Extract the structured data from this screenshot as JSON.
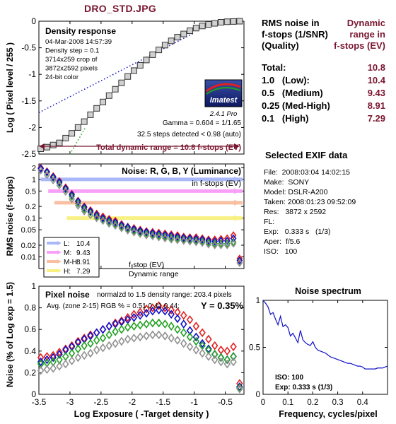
{
  "file_title": "DRO_STD.JPG",
  "summary": {
    "header_left": [
      "RMS noise in",
      "f-stops (1/SNR)",
      "(Quality)"
    ],
    "header_right": [
      "Dynamic",
      "range in",
      "f-stops (EV)"
    ],
    "rows": [
      {
        "label": "Total:",
        "value": "10.8"
      },
      {
        "label": "1.0   (Low):",
        "value": "10.4"
      },
      {
        "label": "0.5   (Medium)",
        "value": "9.43"
      },
      {
        "label": "0.25 (Med-High)",
        "value": "8.91"
      },
      {
        "label": "0.1   (High)",
        "value": "7.29"
      }
    ]
  },
  "exif": {
    "title": "Selected EXIF data",
    "rows": [
      "File:  2008:03:04 14:02:15",
      "Make:  SONY",
      "Model: DSLR-A200",
      "Taken: 2008:01:23 09:52:09",
      "Res:   3872 x 2592",
      "FL:",
      "Exp:   0.333 s   (1/3)",
      "Aper:  f/5.6",
      "ISO:   100"
    ]
  },
  "imatest": {
    "logo": "Imatest",
    "version": "2.4.1  Pro"
  },
  "colors": {
    "red": "#e02020",
    "green": "#20a020",
    "blue": "#1010c8",
    "gray": "#909090",
    "accent": "#7a1630",
    "curve": "#888888",
    "spectrum": "#1010c8"
  },
  "chart_data": [
    {
      "id": "density",
      "type": "line",
      "title": "Density response",
      "info": [
        "04-Mar-2008 14:57:39",
        "Density step = 0.1",
        "3714x259 crop of",
        "3872x2592 pixels",
        "24-bit color"
      ],
      "gamma_text": "Gamma = 0.604 = 1/1.65",
      "steps_text": "32.5 steps detected < 0.98 (auto)",
      "total_text": "Total dynamic range = 10.8 f-stops (EV)",
      "ylabel": "Log ( Pixel level / 255 )",
      "xlim": [
        -3.5,
        -0.2
      ],
      "ylim": [
        -2.5,
        0
      ],
      "yticks": [
        0,
        -0.5,
        -1,
        -1.5,
        -2,
        -2.5
      ],
      "x": [
        -3.47,
        -3.37,
        -3.27,
        -3.17,
        -3.07,
        -2.97,
        -2.87,
        -2.77,
        -2.67,
        -2.57,
        -2.47,
        -2.37,
        -2.27,
        -2.17,
        -2.07,
        -1.97,
        -1.87,
        -1.77,
        -1.67,
        -1.57,
        -1.47,
        -1.37,
        -1.27,
        -1.17,
        -1.07,
        -0.97,
        -0.87,
        -0.77,
        -0.67,
        -0.57,
        -0.47,
        -0.37,
        -0.27
      ],
      "y": [
        -2.4,
        -2.37,
        -2.33,
        -2.29,
        -2.2,
        -2.11,
        -2.0,
        -1.89,
        -1.76,
        -1.64,
        -1.52,
        -1.4,
        -1.28,
        -1.16,
        -1.04,
        -0.93,
        -0.83,
        -0.73,
        -0.63,
        -0.54,
        -0.45,
        -0.37,
        -0.3,
        -0.24,
        -0.18,
        -0.13,
        -0.09,
        -0.06,
        -0.04,
        -0.02,
        -0.01,
        -0.005,
        0.0
      ],
      "gamma_fit": {
        "x": [
          -3.5,
          -1.0
        ],
        "y": [
          -1.72,
          -0.22
        ]
      }
    },
    {
      "id": "rms_noise",
      "type": "scatter",
      "title": "Noise: R, G, B, Y (Luminance)",
      "subtitle": "in f-stops (EV)",
      "ylabel": "RMS noise (f-stops)",
      "scale": "log",
      "ylim": [
        0.005,
        2.5
      ],
      "ytick_labels": [
        "2",
        "1",
        "0.5",
        "0.2",
        "0.1",
        "0.05",
        "0.02",
        "0.01"
      ],
      "ytick_values": [
        2,
        1,
        0.5,
        0.2,
        0.1,
        0.05,
        0.02,
        0.01
      ],
      "x": [
        -3.47,
        -3.37,
        -3.27,
        -3.17,
        -3.07,
        -2.97,
        -2.87,
        -2.77,
        -2.67,
        -2.57,
        -2.47,
        -2.37,
        -2.27,
        -2.17,
        -2.07,
        -1.97,
        -1.87,
        -1.77,
        -1.67,
        -1.57,
        -1.47,
        -1.37,
        -1.27,
        -1.17,
        -1.07,
        -0.97,
        -0.87,
        -0.77,
        -0.67,
        -0.57,
        -0.47,
        -0.37,
        -0.27
      ],
      "series": [
        {
          "color": "red",
          "values": [
            2.0,
            1.6,
            1.2,
            0.9,
            0.62,
            0.42,
            0.28,
            0.2,
            0.16,
            0.13,
            0.11,
            0.095,
            0.085,
            0.07,
            0.06,
            0.055,
            0.05,
            0.046,
            0.044,
            0.042,
            0.04,
            0.038,
            0.036,
            0.033,
            0.032,
            0.032,
            0.03,
            0.028,
            0.028,
            0.029,
            0.03,
            0.036,
            0.009
          ]
        },
        {
          "color": "green",
          "values": [
            1.9,
            1.5,
            1.1,
            0.8,
            0.55,
            0.36,
            0.24,
            0.17,
            0.14,
            0.11,
            0.095,
            0.08,
            0.07,
            0.06,
            0.052,
            0.047,
            0.043,
            0.04,
            0.037,
            0.035,
            0.033,
            0.031,
            0.03,
            0.028,
            0.027,
            0.026,
            0.025,
            0.023,
            0.022,
            0.022,
            0.022,
            0.024,
            0.007
          ]
        },
        {
          "color": "blue",
          "values": [
            1.9,
            1.55,
            1.15,
            0.85,
            0.58,
            0.4,
            0.27,
            0.19,
            0.15,
            0.12,
            0.1,
            0.088,
            0.078,
            0.066,
            0.058,
            0.052,
            0.047,
            0.044,
            0.041,
            0.039,
            0.037,
            0.035,
            0.033,
            0.031,
            0.03,
            0.029,
            0.028,
            0.026,
            0.025,
            0.026,
            0.026,
            0.03,
            0.008
          ]
        },
        {
          "color": "gray",
          "values": [
            1.7,
            1.3,
            0.95,
            0.7,
            0.48,
            0.31,
            0.21,
            0.15,
            0.12,
            0.1,
            0.085,
            0.072,
            0.064,
            0.055,
            0.048,
            0.043,
            0.039,
            0.036,
            0.034,
            0.032,
            0.03,
            0.028,
            0.027,
            0.026,
            0.025,
            0.024,
            0.023,
            0.021,
            0.02,
            0.02,
            0.02,
            0.022,
            0.007
          ]
        }
      ],
      "thresholds": [
        {
          "name": "L:",
          "value": 1.0,
          "range": "10.4",
          "color": "#a8b8f8"
        },
        {
          "name": "M:",
          "value": 0.5,
          "range": "9.43",
          "color": "#f8a0f8"
        },
        {
          "name": "M-H:",
          "value": 0.25,
          "range": "8.91",
          "color": "#f8c0a0"
        },
        {
          "name": "H:",
          "value": 0.1,
          "range": "7.29",
          "color": "#f8f080"
        }
      ],
      "legend_footer": [
        "f-stop (EV)",
        "Dynamic range"
      ]
    },
    {
      "id": "pixel_noise",
      "type": "scatter",
      "title": "Pixel noise",
      "norm_text": "normalzd to 1.5 density range: 203.4 pixels",
      "avg_text": "Avg. (zone 2-15) RGB % = 0.51  0.41  0.44;",
      "y_text": "Y = 0.35%",
      "xlabel": "Log Exposure ( -Target density )",
      "ylabel": "Noise (% of Log exp = 1.5)",
      "xlim": [
        -3.5,
        -0.2
      ],
      "ylim": [
        0,
        1
      ],
      "xticks": [
        -3.5,
        -3,
        -2.5,
        -2,
        -1.5,
        -1,
        -0.5
      ],
      "yticks": [
        0,
        0.2,
        0.4,
        0.6,
        0.8,
        1
      ],
      "x": [
        -3.47,
        -3.37,
        -3.27,
        -3.17,
        -3.07,
        -2.97,
        -2.87,
        -2.77,
        -2.67,
        -2.57,
        -2.47,
        -2.37,
        -2.27,
        -2.17,
        -2.07,
        -1.97,
        -1.87,
        -1.77,
        -1.67,
        -1.57,
        -1.47,
        -1.37,
        -1.27,
        -1.17,
        -1.07,
        -0.97,
        -0.87,
        -0.77,
        -0.67,
        -0.57,
        -0.47,
        -0.37,
        -0.27
      ],
      "series": [
        {
          "color": "red",
          "values": [
            0.34,
            0.35,
            0.36,
            0.39,
            0.42,
            0.45,
            0.49,
            0.52,
            0.55,
            0.57,
            0.6,
            0.63,
            0.66,
            0.68,
            0.71,
            0.74,
            0.76,
            0.79,
            0.8,
            0.82,
            0.8,
            0.78,
            0.76,
            0.73,
            0.69,
            0.63,
            0.57,
            0.51,
            0.45,
            0.41,
            0.4,
            0.44,
            0.1
          ]
        },
        {
          "color": "blue",
          "values": [
            0.3,
            0.32,
            0.34,
            0.37,
            0.41,
            0.44,
            0.48,
            0.51,
            0.54,
            0.57,
            0.6,
            0.63,
            0.65,
            0.67,
            0.69,
            0.71,
            0.73,
            0.75,
            0.77,
            0.78,
            0.77,
            0.74,
            0.7,
            0.65,
            0.59,
            0.53,
            0.47,
            0.42,
            0.37,
            0.34,
            0.32,
            0.35,
            0.07
          ]
        },
        {
          "color": "green",
          "values": [
            0.28,
            0.29,
            0.3,
            0.32,
            0.35,
            0.38,
            0.42,
            0.45,
            0.47,
            0.5,
            0.52,
            0.55,
            0.58,
            0.6,
            0.62,
            0.63,
            0.64,
            0.65,
            0.66,
            0.66,
            0.65,
            0.63,
            0.6,
            0.57,
            0.53,
            0.49,
            0.45,
            0.41,
            0.37,
            0.34,
            0.32,
            0.35,
            0.06
          ]
        },
        {
          "color": "gray",
          "values": [
            0.22,
            0.23,
            0.24,
            0.26,
            0.28,
            0.31,
            0.34,
            0.36,
            0.38,
            0.41,
            0.43,
            0.45,
            0.47,
            0.49,
            0.51,
            0.52,
            0.53,
            0.54,
            0.55,
            0.55,
            0.54,
            0.52,
            0.5,
            0.47,
            0.44,
            0.41,
            0.38,
            0.35,
            0.32,
            0.3,
            0.28,
            0.3,
            0.05
          ]
        }
      ]
    },
    {
      "id": "noise_spectrum",
      "type": "line",
      "title": "Noise spectrum",
      "xlabel": "Frequency, cycles/pixel",
      "xlim": [
        0,
        0.5
      ],
      "ylim": [
        0,
        1
      ],
      "xticks": [
        0,
        0.1,
        0.2,
        0.3,
        0.4
      ],
      "yticks": [
        0,
        0.5,
        1
      ],
      "ytick_labels": [
        "0",
        "0.5",
        "1"
      ],
      "iso_text": "ISO:  100",
      "exp_text": "Exp:  0.333 s   (1/3)",
      "x": [
        0,
        0.01,
        0.02,
        0.03,
        0.04,
        0.05,
        0.06,
        0.07,
        0.08,
        0.09,
        0.1,
        0.11,
        0.12,
        0.13,
        0.14,
        0.15,
        0.16,
        0.17,
        0.18,
        0.19,
        0.2,
        0.21,
        0.22,
        0.23,
        0.24,
        0.25,
        0.26,
        0.27,
        0.28,
        0.29,
        0.3,
        0.31,
        0.32,
        0.33,
        0.34,
        0.35,
        0.36,
        0.37,
        0.38,
        0.39,
        0.4,
        0.41,
        0.42,
        0.43,
        0.44,
        0.45,
        0.46,
        0.47,
        0.48,
        0.49,
        0.5
      ],
      "y": [
        1.0,
        0.97,
        0.93,
        0.85,
        0.87,
        0.8,
        0.74,
        0.83,
        0.72,
        0.74,
        0.71,
        0.62,
        0.65,
        0.6,
        0.55,
        0.68,
        0.58,
        0.55,
        0.53,
        0.52,
        0.56,
        0.5,
        0.47,
        0.46,
        0.45,
        0.44,
        0.42,
        0.4,
        0.39,
        0.38,
        0.37,
        0.36,
        0.35,
        0.34,
        0.33,
        0.33,
        0.32,
        0.31,
        0.3,
        0.3,
        0.29,
        0.27,
        0.27,
        0.27,
        0.27,
        0.27,
        0.28,
        0.28,
        0.28,
        0.29,
        0.3
      ]
    }
  ]
}
